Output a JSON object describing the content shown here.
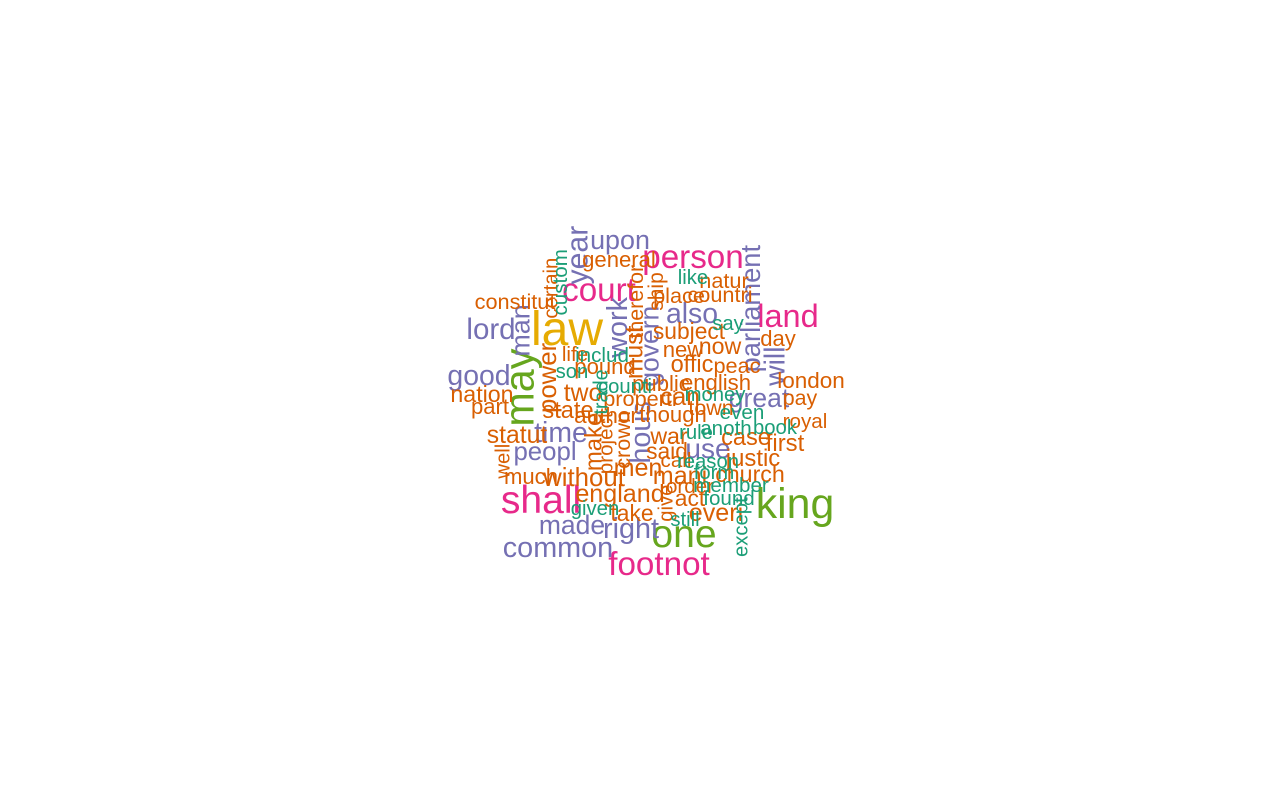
{
  "chart_data": {
    "type": "wordcloud",
    "palette": {
      "1": "#1B9E77",
      "2": "#D95F02",
      "3": "#7570B3",
      "4": "#E7298A",
      "5": "#66A61E",
      "6": "#E6AB02"
    },
    "words": [
      {
        "text": "law",
        "weight": 100,
        "group": 6,
        "rotate": false
      },
      {
        "text": "king",
        "weight": 86,
        "group": 5,
        "rotate": false
      },
      {
        "text": "may",
        "weight": 82,
        "group": 5,
        "rotate": true
      },
      {
        "text": "shall",
        "weight": 76,
        "group": 4,
        "rotate": false
      },
      {
        "text": "one",
        "weight": 76,
        "group": 5,
        "rotate": false
      },
      {
        "text": "court",
        "weight": 60,
        "group": 4,
        "rotate": false
      },
      {
        "text": "person",
        "weight": 60,
        "group": 4,
        "rotate": false
      },
      {
        "text": "footnot",
        "weight": 60,
        "group": 4,
        "rotate": false
      },
      {
        "text": "land",
        "weight": 58,
        "group": 4,
        "rotate": false
      },
      {
        "text": "year",
        "weight": 52,
        "group": 3,
        "rotate": true
      },
      {
        "text": "lord",
        "weight": 50,
        "group": 3,
        "rotate": false
      },
      {
        "text": "right",
        "weight": 48,
        "group": 3,
        "rotate": false
      },
      {
        "text": "common",
        "weight": 48,
        "group": 3,
        "rotate": false
      },
      {
        "text": "hous",
        "weight": 48,
        "group": 3,
        "rotate": true
      },
      {
        "text": "work",
        "weight": 48,
        "group": 3,
        "rotate": true
      },
      {
        "text": "good",
        "weight": 47,
        "group": 3,
        "rotate": false
      },
      {
        "text": "also",
        "weight": 47,
        "group": 3,
        "rotate": false
      },
      {
        "text": "time",
        "weight": 47,
        "group": 3,
        "rotate": false
      },
      {
        "text": "will",
        "weight": 47,
        "group": 3,
        "rotate": true
      },
      {
        "text": "use",
        "weight": 46,
        "group": 3,
        "rotate": false
      },
      {
        "text": "parliament",
        "weight": 44,
        "group": 3,
        "rotate": true
      },
      {
        "text": "upon",
        "weight": 43,
        "group": 3,
        "rotate": false
      },
      {
        "text": "man",
        "weight": 43,
        "group": 3,
        "rotate": true
      },
      {
        "text": "made",
        "weight": 42,
        "group": 3,
        "rotate": false
      },
      {
        "text": "govern",
        "weight": 42,
        "group": 3,
        "rotate": true
      },
      {
        "text": "great",
        "weight": 42,
        "group": 3,
        "rotate": false
      },
      {
        "text": "peopl",
        "weight": 40,
        "group": 3,
        "rotate": false
      },
      {
        "text": "without",
        "weight": 40,
        "group": 2,
        "rotate": false
      },
      {
        "text": "power",
        "weight": 40,
        "group": 2,
        "rotate": true
      },
      {
        "text": "england",
        "weight": 38,
        "group": 2,
        "rotate": false
      },
      {
        "text": "mani",
        "weight": 38,
        "group": 2,
        "rotate": false
      },
      {
        "text": "men",
        "weight": 38,
        "group": 2,
        "rotate": false
      },
      {
        "text": "everi",
        "weight": 38,
        "group": 2,
        "rotate": false
      },
      {
        "text": "statut",
        "weight": 37,
        "group": 2,
        "rotate": false
      },
      {
        "text": "two",
        "weight": 37,
        "group": 2,
        "rotate": false
      },
      {
        "text": "must",
        "weight": 37,
        "group": 2,
        "rotate": true
      },
      {
        "text": "can",
        "weight": 37,
        "group": 2,
        "rotate": false
      },
      {
        "text": "make",
        "weight": 35,
        "group": 2,
        "rotate": true
      },
      {
        "text": "first",
        "weight": 35,
        "group": 2,
        "rotate": false
      },
      {
        "text": "justic",
        "weight": 35,
        "group": 2,
        "rotate": false
      },
      {
        "text": "state",
        "weight": 34,
        "group": 2,
        "rotate": false
      },
      {
        "text": "offic",
        "weight": 34,
        "group": 2,
        "rotate": false
      },
      {
        "text": "case",
        "weight": 34,
        "group": 2,
        "rotate": false
      },
      {
        "text": "war",
        "weight": 33,
        "group": 2,
        "rotate": false
      },
      {
        "text": "nation",
        "weight": 33,
        "group": 2,
        "rotate": false
      },
      {
        "text": "now",
        "weight": 33,
        "group": 2,
        "rotate": false
      },
      {
        "text": "church",
        "weight": 33,
        "group": 2,
        "rotate": false
      },
      {
        "text": "subject",
        "weight": 32,
        "group": 2,
        "rotate": false
      },
      {
        "text": "said",
        "weight": 32,
        "group": 2,
        "rotate": false
      },
      {
        "text": "take",
        "weight": 32,
        "group": 2,
        "rotate": false
      },
      {
        "text": "act",
        "weight": 32,
        "group": 2,
        "rotate": false
      },
      {
        "text": "author",
        "weight": 31,
        "group": 2,
        "rotate": false
      },
      {
        "text": "london",
        "weight": 31,
        "group": 2,
        "rotate": false
      },
      {
        "text": "pound",
        "weight": 30,
        "group": 2,
        "rotate": false
      },
      {
        "text": "general",
        "weight": 30,
        "group": 2,
        "rotate": false
      },
      {
        "text": "part",
        "weight": 30,
        "group": 2,
        "rotate": false
      },
      {
        "text": "english",
        "weight": 30,
        "group": 2,
        "rotate": false
      },
      {
        "text": "though",
        "weight": 30,
        "group": 2,
        "rotate": false
      },
      {
        "text": "day",
        "weight": 30,
        "group": 2,
        "rotate": false
      },
      {
        "text": "much",
        "weight": 30,
        "group": 2,
        "rotate": false
      },
      {
        "text": "public",
        "weight": 30,
        "group": 2,
        "rotate": false
      },
      {
        "text": "new",
        "weight": 30,
        "group": 2,
        "rotate": false
      },
      {
        "text": "constitut",
        "weight": 29,
        "group": 2,
        "rotate": false
      },
      {
        "text": "natur",
        "weight": 29,
        "group": 2,
        "rotate": false
      },
      {
        "text": "countri",
        "weight": 29,
        "group": 2,
        "rotate": false
      },
      {
        "text": "place",
        "weight": 29,
        "group": 2,
        "rotate": false
      },
      {
        "text": "peac",
        "weight": 29,
        "group": 2,
        "rotate": false
      },
      {
        "text": "properti",
        "weight": 29,
        "group": 2,
        "rotate": false
      },
      {
        "text": "crown",
        "weight": 29,
        "group": 2,
        "rotate": true
      },
      {
        "text": "town",
        "weight": 28,
        "group": 2,
        "rotate": false
      },
      {
        "text": "therefor",
        "weight": 28,
        "group": 2,
        "rotate": true
      },
      {
        "text": "pay",
        "weight": 28,
        "group": 2,
        "rotate": false
      },
      {
        "text": "ship",
        "weight": 27,
        "group": 2,
        "rotate": true
      },
      {
        "text": "order",
        "weight": 26,
        "group": 2,
        "rotate": false
      },
      {
        "text": "royal",
        "weight": 26,
        "group": 2,
        "rotate": false
      },
      {
        "text": "life",
        "weight": 26,
        "group": 2,
        "rotate": false
      },
      {
        "text": "call",
        "weight": 26,
        "group": 2,
        "rotate": false
      },
      {
        "text": "project",
        "weight": 26,
        "group": 2,
        "rotate": true
      },
      {
        "text": "give",
        "weight": 25,
        "group": 2,
        "rotate": true
      },
      {
        "text": "well",
        "weight": 25,
        "group": 2,
        "rotate": true
      },
      {
        "text": "certain",
        "weight": 25,
        "group": 2,
        "rotate": true
      },
      {
        "text": "found",
        "weight": 26,
        "group": 1,
        "rotate": false
      },
      {
        "text": "member",
        "weight": 26,
        "group": 1,
        "rotate": false
      },
      {
        "text": "custom",
        "weight": 26,
        "group": 1,
        "rotate": true
      },
      {
        "text": "includ",
        "weight": 26,
        "group": 1,
        "rotate": false
      },
      {
        "text": "anoth",
        "weight": 26,
        "group": 1,
        "rotate": false
      },
      {
        "text": "even",
        "weight": 26,
        "group": 1,
        "rotate": false
      },
      {
        "text": "money",
        "weight": 25,
        "group": 1,
        "rotate": false
      },
      {
        "text": "counti",
        "weight": 25,
        "group": 1,
        "rotate": false
      },
      {
        "text": "book",
        "weight": 25,
        "group": 1,
        "rotate": false
      },
      {
        "text": "rule",
        "weight": 25,
        "group": 1,
        "rotate": false
      },
      {
        "text": "reason",
        "weight": 25,
        "group": 1,
        "rotate": false
      },
      {
        "text": "given",
        "weight": 25,
        "group": 1,
        "rotate": false
      },
      {
        "text": "still",
        "weight": 25,
        "group": 1,
        "rotate": false
      },
      {
        "text": "form",
        "weight": 25,
        "group": 1,
        "rotate": false
      },
      {
        "text": "son",
        "weight": 25,
        "group": 1,
        "rotate": false
      },
      {
        "text": "like",
        "weight": 25,
        "group": 1,
        "rotate": false
      },
      {
        "text": "say",
        "weight": 25,
        "group": 1,
        "rotate": false
      },
      {
        "text": "except",
        "weight": 25,
        "group": 1,
        "rotate": true
      },
      {
        "text": "trade",
        "weight": 24,
        "group": 1,
        "rotate": true
      }
    ]
  }
}
